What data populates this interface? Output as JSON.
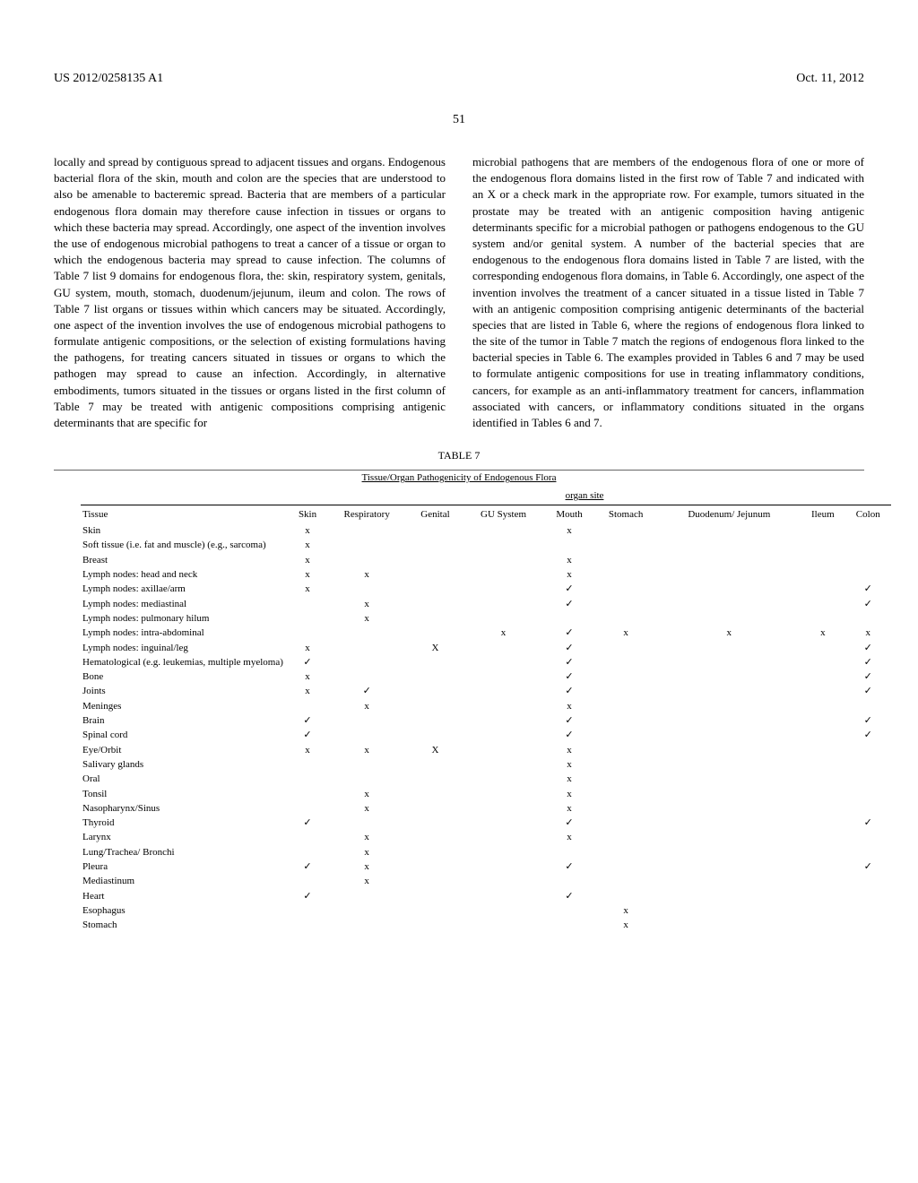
{
  "header": {
    "pub_number": "US 2012/0258135 A1",
    "pub_date": "Oct. 11, 2012",
    "page_number": "51"
  },
  "paragraphs": {
    "left_col": "locally and spread by contiguous spread to adjacent tissues and organs. Endogenous bacterial flora of the skin, mouth and colon are the species that are understood to also be amenable to bacteremic spread. Bacteria that are members of a particular endogenous flora domain may therefore cause infection in tissues or organs to which these bacteria may spread. Accordingly, one aspect of the invention involves the use of endogenous microbial pathogens to treat a cancer of a tissue or organ to which the endogenous bacteria may spread to cause infection. The columns of Table 7 list 9 domains for endogenous flora, the: skin, respiratory system, genitals, GU system, mouth, stomach, duodenum/jejunum, ileum and colon. The rows of Table 7 list organs or tissues within which cancers may be situated. Accordingly, one aspect of the invention involves the use of endogenous microbial pathogens to formulate antigenic compositions, or the selection of existing formulations having the pathogens, for treating cancers situated in tissues or organs to which the pathogen may spread to cause an infection. Accordingly, in alternative embodiments, tumors situated in the tissues or organs listed in the first column of Table 7 may be treated with antigenic compositions comprising antigenic determinants that are specific for",
    "right_col": "microbial pathogens that are members of the endogenous flora of one or more of the endogenous flora domains listed in the first row of Table 7 and indicated with an X or a check mark in the appropriate row. For example, tumors situated in the prostate may be treated with an antigenic composition having antigenic determinants specific for a microbial pathogen or pathogens endogenous to the GU system and/or genital system. A number of the bacterial species that are endogenous to the endogenous flora domains listed in Table 7 are listed, with the corresponding endogenous flora domains, in Table 6. Accordingly, one aspect of the invention involves the treatment of a cancer situated in a tissue listed in Table 7 with an antigenic composition comprising antigenic determinants of the bacterial species that are listed in Table 6, where the regions of endogenous flora linked to the site of the tumor in Table 7 match the regions of endogenous flora linked to the bacterial species in Table 6. The examples provided in Tables 6 and 7 may be used to formulate antigenic compositions for use in treating inflammatory conditions, cancers, for example as an anti-inflammatory treatment for cancers, inflammation associated with cancers, or inflammatory conditions situated in the organs identified in Tables 6 and 7."
  },
  "table": {
    "label": "TABLE 7",
    "title": "Tissue/Organ Pathogenicity of Endogenous Flora",
    "organ_site_label": "organ site",
    "columns": [
      "Tissue",
      "Skin",
      "Respiratory",
      "Genital",
      "GU System",
      "Mouth",
      "Stomach",
      "Duodenum/ Jejunum",
      "Ileum",
      "Colon"
    ],
    "rows": [
      {
        "tissue": "Skin",
        "cells": [
          "x",
          "",
          "",
          "",
          "x",
          "",
          "",
          "",
          ""
        ]
      },
      {
        "tissue": "Soft tissue (i.e. fat and muscle) (e.g., sarcoma)",
        "cells": [
          "x",
          "",
          "",
          "",
          "",
          "",
          "",
          "",
          ""
        ]
      },
      {
        "tissue": "Breast",
        "cells": [
          "x",
          "",
          "",
          "",
          "x",
          "",
          "",
          "",
          ""
        ]
      },
      {
        "tissue": "Lymph nodes: head and neck",
        "cells": [
          "x",
          "x",
          "",
          "",
          "x",
          "",
          "",
          "",
          ""
        ]
      },
      {
        "tissue": "Lymph nodes: axillae/arm",
        "cells": [
          "x",
          "",
          "",
          "",
          "✓",
          "",
          "",
          "",
          "✓"
        ]
      },
      {
        "tissue": "Lymph nodes: mediastinal",
        "cells": [
          "",
          "x",
          "",
          "",
          "✓",
          "",
          "",
          "",
          "✓"
        ]
      },
      {
        "tissue": "Lymph nodes: pulmonary hilum",
        "cells": [
          "",
          "x",
          "",
          "",
          "",
          "",
          "",
          "",
          ""
        ]
      },
      {
        "tissue": "Lymph nodes: intra-abdominal",
        "cells": [
          "",
          "",
          "",
          "x",
          "✓",
          "x",
          "x",
          "x",
          "x"
        ]
      },
      {
        "tissue": "Lymph nodes: inguinal/leg",
        "cells": [
          "x",
          "",
          "X",
          "",
          "✓",
          "",
          "",
          "",
          "✓"
        ]
      },
      {
        "tissue": "Hematological (e.g. leukemias, multiple myeloma)",
        "cells": [
          "✓",
          "",
          "",
          "",
          "✓",
          "",
          "",
          "",
          "✓"
        ]
      },
      {
        "tissue": "Bone",
        "cells": [
          "x",
          "",
          "",
          "",
          "✓",
          "",
          "",
          "",
          "✓"
        ]
      },
      {
        "tissue": "Joints",
        "cells": [
          "x",
          "✓",
          "",
          "",
          "✓",
          "",
          "",
          "",
          "✓"
        ]
      },
      {
        "tissue": "Meninges",
        "cells": [
          "",
          "x",
          "",
          "",
          "x",
          "",
          "",
          "",
          ""
        ]
      },
      {
        "tissue": "Brain",
        "cells": [
          "✓",
          "",
          "",
          "",
          "✓",
          "",
          "",
          "",
          "✓"
        ]
      },
      {
        "tissue": "Spinal cord",
        "cells": [
          "✓",
          "",
          "",
          "",
          "✓",
          "",
          "",
          "",
          "✓"
        ]
      },
      {
        "tissue": "Eye/Orbit",
        "cells": [
          "x",
          "x",
          "X",
          "",
          "x",
          "",
          "",
          "",
          ""
        ]
      },
      {
        "tissue": "Salivary glands",
        "cells": [
          "",
          "",
          "",
          "",
          "x",
          "",
          "",
          "",
          ""
        ]
      },
      {
        "tissue": "Oral",
        "cells": [
          "",
          "",
          "",
          "",
          "x",
          "",
          "",
          "",
          ""
        ]
      },
      {
        "tissue": "Tonsil",
        "cells": [
          "",
          "x",
          "",
          "",
          "x",
          "",
          "",
          "",
          ""
        ]
      },
      {
        "tissue": "Nasopharynx/Sinus",
        "cells": [
          "",
          "x",
          "",
          "",
          "x",
          "",
          "",
          "",
          ""
        ]
      },
      {
        "tissue": "Thyroid",
        "cells": [
          "✓",
          "",
          "",
          "",
          "✓",
          "",
          "",
          "",
          "✓"
        ]
      },
      {
        "tissue": "Larynx",
        "cells": [
          "",
          "x",
          "",
          "",
          "x",
          "",
          "",
          "",
          ""
        ]
      },
      {
        "tissue": "Lung/Trachea/ Bronchi",
        "cells": [
          "",
          "x",
          "",
          "",
          "",
          "",
          "",
          "",
          ""
        ]
      },
      {
        "tissue": "Pleura",
        "cells": [
          "✓",
          "x",
          "",
          "",
          "✓",
          "",
          "",
          "",
          "✓"
        ]
      },
      {
        "tissue": "Mediastinum",
        "cells": [
          "",
          "x",
          "",
          "",
          "",
          "",
          "",
          "",
          ""
        ]
      },
      {
        "tissue": "Heart",
        "cells": [
          "✓",
          "",
          "",
          "",
          "✓",
          "",
          "",
          "",
          ""
        ]
      },
      {
        "tissue": "Esophagus",
        "cells": [
          "",
          "",
          "",
          "",
          "",
          "x",
          "",
          "",
          ""
        ]
      },
      {
        "tissue": "Stomach",
        "cells": [
          "",
          "",
          "",
          "",
          "",
          "x",
          "",
          "",
          ""
        ]
      }
    ]
  }
}
